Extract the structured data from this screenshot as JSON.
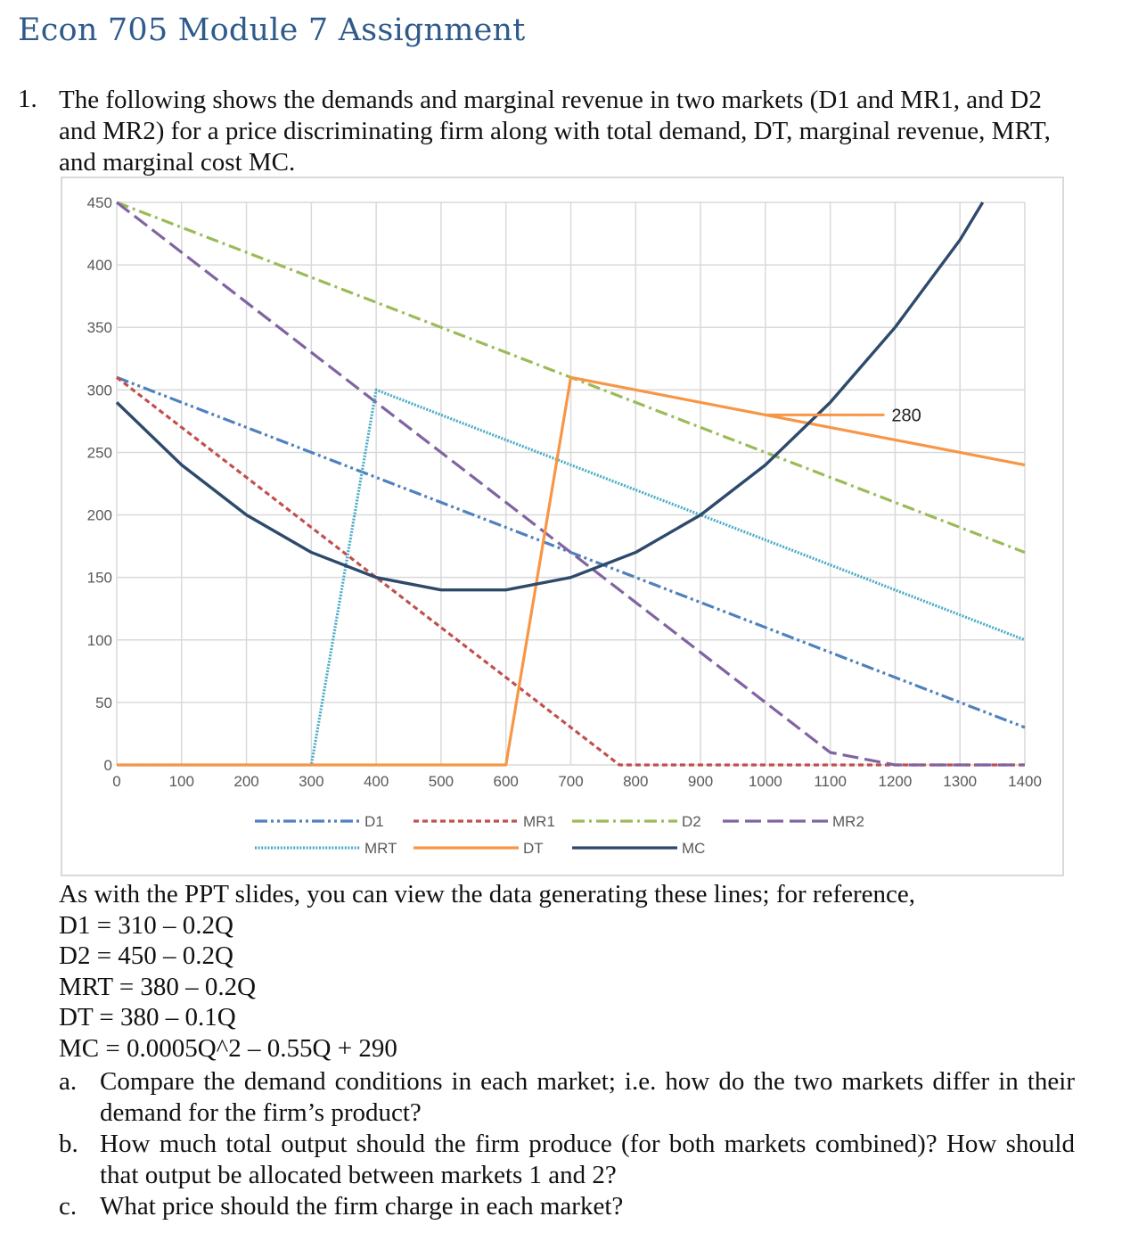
{
  "title": "Econ 705 Module 7 Assignment",
  "question": {
    "number": "1.",
    "text": "The following shows the demands and marginal revenue in two markets (D1 and MR1, and D2 and MR2) for a price discriminating firm along with total demand, DT, marginal revenue, MRT, and marginal cost MC."
  },
  "intro": "As with the PPT slides, you can view the data generating these lines; for reference,",
  "equations": [
    "D1 = 310 – 0.2Q",
    "D2 = 450 – 0.2Q",
    "MRT = 380 – 0.2Q",
    "DT = 380 – 0.1Q",
    "MC = 0.0005Q^2 – 0.55Q + 290"
  ],
  "parts": [
    {
      "label": "a.",
      "text": "Compare the demand conditions in each market; i.e. how do the two markets differ in their demand for the firm’s product?"
    },
    {
      "label": "b.",
      "text": "How much total output should the firm produce (for both markets combined)? How should that output be allocated between markets 1 and 2?"
    },
    {
      "label": "c.",
      "text": "What price should the firm charge in each market?"
    }
  ],
  "chart_data": {
    "type": "line",
    "x_ticks": [
      "0",
      "100",
      "200",
      "300",
      "400",
      "500",
      "600",
      "700",
      "800",
      "900",
      "1000",
      "1100",
      "1200",
      "1300",
      "1400"
    ],
    "y_ticks": [
      "0",
      "50",
      "100",
      "150",
      "200",
      "250",
      "300",
      "350",
      "400",
      "450"
    ],
    "xlim": [
      0,
      1400
    ],
    "ylim": [
      0,
      450
    ],
    "grid": true,
    "legend_position": "bottom",
    "annotation": {
      "text": "280",
      "x": 1200,
      "y": 280
    },
    "series": [
      {
        "name": "D1",
        "color": "#4f81bd",
        "dash": "dash-dot-dot",
        "points": [
          [
            0,
            310
          ],
          [
            1400,
            30
          ]
        ]
      },
      {
        "name": "MR1",
        "color": "#c0504d",
        "dash": "short-dash",
        "points": [
          [
            0,
            310
          ],
          [
            100,
            270
          ],
          [
            200,
            230
          ],
          [
            300,
            190
          ],
          [
            400,
            150
          ],
          [
            500,
            110
          ],
          [
            600,
            70
          ],
          [
            700,
            30
          ],
          [
            775,
            0
          ],
          [
            1400,
            0
          ]
        ]
      },
      {
        "name": "D2",
        "color": "#9bbb59",
        "dash": "dash-dot",
        "points": [
          [
            0,
            450
          ],
          [
            1400,
            170
          ]
        ]
      },
      {
        "name": "MR2",
        "color": "#8064a2",
        "dash": "long-dash",
        "points": [
          [
            0,
            450
          ],
          [
            100,
            410
          ],
          [
            200,
            370
          ],
          [
            300,
            330
          ],
          [
            400,
            290
          ],
          [
            500,
            250
          ],
          [
            600,
            210
          ],
          [
            700,
            170
          ],
          [
            800,
            130
          ],
          [
            900,
            90
          ],
          [
            1000,
            50
          ],
          [
            1100,
            10
          ],
          [
            1200,
            0
          ],
          [
            1400,
            0
          ]
        ]
      },
      {
        "name": "MRT",
        "color": "#4bacc6",
        "dash": "dotted",
        "points": [
          [
            0,
            0
          ],
          [
            300,
            0
          ],
          [
            400,
            300
          ],
          [
            1400,
            100
          ]
        ]
      },
      {
        "name": "DT",
        "color": "#f79646",
        "dash": "solid",
        "points": [
          [
            0,
            0
          ],
          [
            600,
            0
          ],
          [
            700,
            310
          ],
          [
            1400,
            240
          ]
        ]
      },
      {
        "name": "MC",
        "color": "#2e4a6b",
        "dash": "solid",
        "points": [
          [
            0,
            290
          ],
          [
            100,
            240
          ],
          [
            200,
            200
          ],
          [
            300,
            170
          ],
          [
            400,
            150
          ],
          [
            500,
            140
          ],
          [
            600,
            140
          ],
          [
            700,
            150
          ],
          [
            800,
            170
          ],
          [
            900,
            200
          ],
          [
            1000,
            240
          ],
          [
            1100,
            290
          ],
          [
            1200,
            350
          ],
          [
            1300,
            420
          ],
          [
            1335,
            450
          ]
        ]
      }
    ]
  }
}
